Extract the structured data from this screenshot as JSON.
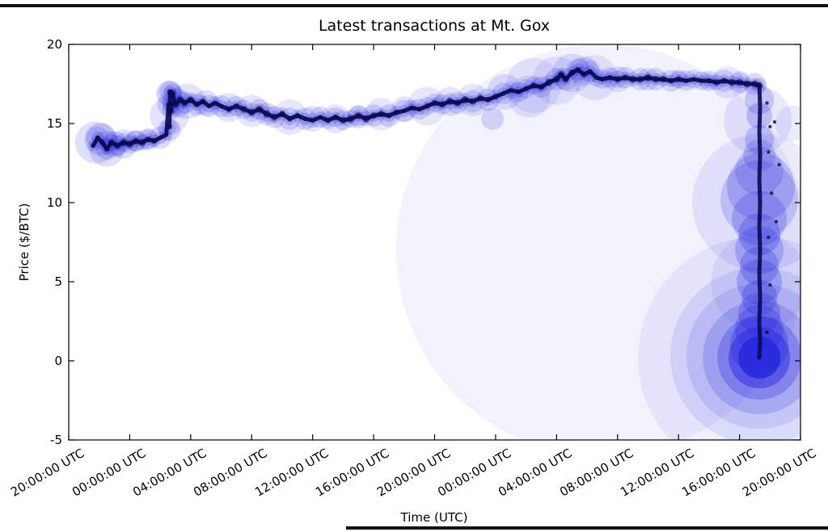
{
  "figure": {
    "title": "Latest transactions at Mt. Gox",
    "xlabel": "Time (UTC)",
    "ylabel": "Price ($/BTC)"
  },
  "chart_data": {
    "type": "scatter",
    "title": "Latest transactions at Mt. Gox",
    "xlabel": "Time (UTC)",
    "ylabel": "Price ($/BTC)",
    "ylim": [
      -5,
      20
    ],
    "yticks": [
      20,
      15,
      10,
      5,
      0,
      -5
    ],
    "x_tick_hours": [
      0,
      4,
      8,
      12,
      16,
      20,
      24,
      28,
      32,
      36,
      40,
      44,
      48
    ],
    "x_tick_labels": [
      "20:00:00 UTC",
      "00:00:00 UTC",
      "04:00:00 UTC",
      "08:00:00 UTC",
      "12:00:00 UTC",
      "16:00:00 UTC",
      "20:00:00 UTC",
      "00:00:00 UTC",
      "04:00:00 UTC",
      "08:00:00 UTC",
      "12:00:00 UTC",
      "16:00:00 UTC",
      "20:00:00 UTC"
    ],
    "grid": false,
    "legend": null,
    "point_color": "#2626dd",
    "core_color": "#0a0a4e",
    "price_track": [
      [
        1.6,
        13.6
      ],
      [
        1.9,
        14.1
      ],
      [
        2.2,
        13.8
      ],
      [
        2.5,
        13.4
      ],
      [
        2.8,
        13.8
      ],
      [
        3.2,
        13.6
      ],
      [
        3.6,
        13.8
      ],
      [
        4.0,
        13.7
      ],
      [
        4.4,
        13.9
      ],
      [
        4.8,
        13.8
      ],
      [
        5.2,
        14.0
      ],
      [
        5.6,
        13.9
      ],
      [
        6.0,
        14.1
      ],
      [
        6.4,
        14.3
      ],
      [
        6.55,
        16.2
      ],
      [
        6.6,
        14.8
      ],
      [
        6.65,
        17.0
      ],
      [
        6.7,
        15.8
      ],
      [
        6.8,
        16.9
      ],
      [
        7.0,
        16.2
      ],
      [
        7.3,
        16.5
      ],
      [
        7.6,
        16.3
      ],
      [
        8.0,
        16.5
      ],
      [
        8.4,
        16.2
      ],
      [
        8.8,
        16.4
      ],
      [
        9.2,
        16.1
      ],
      [
        9.6,
        16.3
      ],
      [
        10.0,
        16.1
      ],
      [
        10.5,
        15.9
      ],
      [
        11.0,
        16.1
      ],
      [
        11.5,
        15.9
      ],
      [
        12.0,
        15.7
      ],
      [
        12.5,
        15.9
      ],
      [
        13.0,
        15.6
      ],
      [
        13.5,
        15.4
      ],
      [
        14.0,
        15.6
      ],
      [
        14.5,
        15.3
      ],
      [
        15.0,
        15.5
      ],
      [
        15.5,
        15.3
      ],
      [
        16.0,
        15.2
      ],
      [
        16.5,
        15.4
      ],
      [
        17.0,
        15.2
      ],
      [
        17.5,
        15.4
      ],
      [
        18.0,
        15.2
      ],
      [
        18.5,
        15.3
      ],
      [
        19.0,
        15.5
      ],
      [
        19.5,
        15.3
      ],
      [
        20.0,
        15.5
      ],
      [
        20.5,
        15.6
      ],
      [
        21.0,
        15.5
      ],
      [
        21.5,
        15.7
      ],
      [
        22.0,
        15.8
      ],
      [
        22.5,
        16.0
      ],
      [
        23.0,
        15.9
      ],
      [
        23.5,
        16.1
      ],
      [
        24.0,
        16.3
      ],
      [
        24.5,
        16.2
      ],
      [
        25.0,
        16.4
      ],
      [
        25.5,
        16.3
      ],
      [
        26.0,
        16.5
      ],
      [
        26.5,
        16.4
      ],
      [
        27.0,
        16.6
      ],
      [
        27.5,
        16.5
      ],
      [
        28.0,
        16.7
      ],
      [
        28.5,
        16.9
      ],
      [
        29.0,
        17.1
      ],
      [
        29.5,
        17.0
      ],
      [
        30.0,
        17.2
      ],
      [
        30.5,
        17.4
      ],
      [
        31.0,
        17.3
      ],
      [
        31.5,
        17.6
      ],
      [
        32.0,
        17.8
      ],
      [
        32.3,
        18.1
      ],
      [
        32.6,
        17.8
      ],
      [
        33.0,
        18.2
      ],
      [
        33.4,
        18.4
      ],
      [
        33.8,
        18.1
      ],
      [
        34.2,
        18.3
      ],
      [
        34.6,
        17.9
      ],
      [
        35.0,
        17.8
      ],
      [
        35.5,
        17.9
      ],
      [
        36.0,
        17.8
      ],
      [
        36.5,
        17.9
      ],
      [
        37.0,
        17.8
      ],
      [
        37.5,
        17.8
      ],
      [
        38.0,
        17.9
      ],
      [
        38.5,
        17.8
      ],
      [
        39.0,
        17.8
      ],
      [
        39.5,
        17.7
      ],
      [
        40.0,
        17.8
      ],
      [
        40.5,
        17.7
      ],
      [
        41.0,
        17.8
      ],
      [
        41.5,
        17.7
      ],
      [
        42.0,
        17.7
      ],
      [
        42.5,
        17.6
      ],
      [
        43.0,
        17.7
      ],
      [
        43.5,
        17.6
      ],
      [
        44.0,
        17.6
      ],
      [
        44.5,
        17.5
      ],
      [
        45.0,
        17.5
      ],
      [
        45.3,
        17.4
      ]
    ],
    "crash_track": [
      [
        45.3,
        17.4
      ],
      [
        45.35,
        16.0
      ],
      [
        45.3,
        14.5
      ],
      [
        45.35,
        13.0
      ],
      [
        45.3,
        11.5
      ],
      [
        45.35,
        10.0
      ],
      [
        45.3,
        8.5
      ],
      [
        45.35,
        7.0
      ],
      [
        45.3,
        5.5
      ],
      [
        45.35,
        4.0
      ],
      [
        45.3,
        2.5
      ],
      [
        45.35,
        1.2
      ],
      [
        45.3,
        0.2
      ]
    ],
    "bubbles": [
      [
        35.0,
        7.0,
        255,
        0.06
      ],
      [
        45.3,
        0.2,
        150,
        0.07
      ],
      [
        45.4,
        10.0,
        85,
        0.09
      ],
      [
        45.3,
        5.0,
        60,
        0.08
      ],
      [
        45.2,
        15.2,
        42,
        0.1
      ],
      [
        1.8,
        13.8,
        26,
        0.15
      ],
      [
        2.1,
        14.0,
        20,
        0.18
      ],
      [
        2.5,
        13.4,
        22,
        0.15
      ],
      [
        3.0,
        13.7,
        16,
        0.18
      ],
      [
        3.6,
        13.7,
        18,
        0.14
      ],
      [
        4.4,
        13.9,
        13,
        0.18
      ],
      [
        5.2,
        14.0,
        12,
        0.18
      ],
      [
        6.6,
        15.5,
        24,
        0.13
      ],
      [
        6.6,
        16.9,
        16,
        0.2
      ],
      [
        6.6,
        14.6,
        14,
        0.2
      ],
      [
        7.1,
        16.3,
        18,
        0.16
      ],
      [
        7.8,
        16.4,
        22,
        0.13
      ],
      [
        9.0,
        16.3,
        16,
        0.15
      ],
      [
        10.5,
        16.0,
        18,
        0.13
      ],
      [
        12.0,
        15.8,
        20,
        0.12
      ],
      [
        13.0,
        15.6,
        14,
        0.16
      ],
      [
        14.5,
        15.4,
        22,
        0.11
      ],
      [
        16.0,
        15.3,
        16,
        0.13
      ],
      [
        17.5,
        15.3,
        18,
        0.12
      ],
      [
        19.0,
        15.4,
        14,
        0.15
      ],
      [
        20.5,
        15.6,
        20,
        0.12
      ],
      [
        22.0,
        15.9,
        16,
        0.13
      ],
      [
        23.5,
        16.1,
        24,
        0.11
      ],
      [
        25.0,
        16.4,
        18,
        0.13
      ],
      [
        26.5,
        16.5,
        20,
        0.12
      ],
      [
        27.8,
        15.3,
        14,
        0.16
      ],
      [
        28.6,
        17.0,
        22,
        0.13
      ],
      [
        30.2,
        16.7,
        26,
        0.11
      ],
      [
        30.5,
        17.4,
        34,
        0.09
      ],
      [
        32.0,
        17.7,
        30,
        0.1
      ],
      [
        33.0,
        18.2,
        24,
        0.13
      ],
      [
        33.8,
        18.3,
        18,
        0.16
      ],
      [
        34.5,
        17.9,
        28,
        0.1
      ],
      [
        36.0,
        17.8,
        16,
        0.13
      ],
      [
        38.0,
        17.8,
        14,
        0.13
      ],
      [
        40.0,
        17.8,
        12,
        0.13
      ],
      [
        42.0,
        17.7,
        10,
        0.13
      ],
      [
        43.2,
        17.6,
        20,
        0.11
      ],
      [
        44.0,
        17.6,
        12,
        0.13
      ],
      [
        47.5,
        15.0,
        22,
        0.09
      ],
      [
        45.3,
        16.5,
        18,
        0.2
      ],
      [
        45.3,
        15.5,
        16,
        0.22
      ],
      [
        45.3,
        14.0,
        18,
        0.2
      ],
      [
        45.3,
        13.0,
        20,
        0.18
      ],
      [
        45.3,
        12.0,
        30,
        0.18
      ],
      [
        45.4,
        11.0,
        42,
        0.2
      ],
      [
        45.3,
        10.2,
        48,
        0.18
      ],
      [
        45.3,
        9.0,
        34,
        0.22
      ],
      [
        45.3,
        8.0,
        26,
        0.25
      ],
      [
        45.3,
        7.0,
        30,
        0.22
      ],
      [
        45.3,
        6.0,
        24,
        0.25
      ],
      [
        45.3,
        5.0,
        28,
        0.25
      ],
      [
        45.3,
        4.0,
        22,
        0.25
      ],
      [
        45.3,
        3.0,
        26,
        0.25
      ],
      [
        45.3,
        2.0,
        30,
        0.25
      ],
      [
        45.3,
        1.0,
        36,
        0.3
      ],
      [
        45.3,
        0.3,
        110,
        0.1
      ],
      [
        45.3,
        0.3,
        90,
        0.12
      ],
      [
        45.3,
        0.2,
        70,
        0.18
      ],
      [
        45.3,
        0.2,
        52,
        0.28
      ],
      [
        45.3,
        0.2,
        38,
        0.45
      ],
      [
        45.3,
        0.2,
        26,
        0.8
      ]
    ],
    "stray_points": [
      [
        45.8,
        16.3
      ],
      [
        46.0,
        14.8
      ],
      [
        45.9,
        13.2
      ],
      [
        46.1,
        10.6
      ],
      [
        45.9,
        7.8
      ],
      [
        46.0,
        4.8
      ],
      [
        45.8,
        1.8
      ],
      [
        46.3,
        15.1
      ],
      [
        46.6,
        12.4
      ],
      [
        46.4,
        8.8
      ]
    ]
  }
}
